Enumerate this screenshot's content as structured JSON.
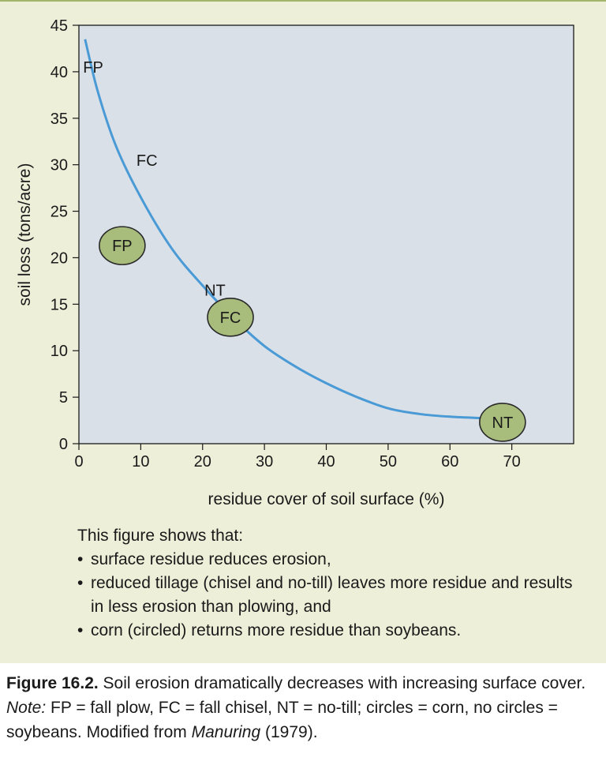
{
  "chart_data": {
    "type": "line",
    "xlabel": "residue cover of soil surface (%)",
    "ylabel": "soil loss (tons/acre)",
    "xlim": [
      0,
      80
    ],
    "ylim": [
      0,
      45
    ],
    "x_ticks": [
      0,
      10,
      20,
      30,
      40,
      50,
      60,
      70
    ],
    "y_ticks": [
      0,
      5,
      10,
      15,
      20,
      25,
      30,
      35,
      40,
      45
    ],
    "grid": false,
    "series": [
      {
        "points": [
          [
            1,
            43.5
          ],
          [
            3,
            38
          ],
          [
            6,
            32
          ],
          [
            10,
            26.5
          ],
          [
            15,
            21
          ],
          [
            20,
            17
          ],
          [
            25,
            13.5
          ],
          [
            30,
            10.5
          ],
          [
            35,
            8.3
          ],
          [
            40,
            6.5
          ],
          [
            45,
            5
          ],
          [
            50,
            3.8
          ],
          [
            55,
            3.2
          ],
          [
            60,
            2.9
          ],
          [
            65,
            2.75
          ],
          [
            68,
            2.7
          ]
        ]
      }
    ],
    "annotations": [
      {
        "label": "FP",
        "x": 2.3,
        "y": 40.5,
        "circled": false
      },
      {
        "label": "FC",
        "x": 11,
        "y": 30.5,
        "circled": false
      },
      {
        "label": "NT",
        "x": 22,
        "y": 16.5,
        "circled": false
      },
      {
        "label": "FP",
        "x": 7,
        "y": 21.3,
        "circled": true
      },
      {
        "label": "FC",
        "x": 24.5,
        "y": 13.6,
        "circled": true
      },
      {
        "label": "NT",
        "x": 68.5,
        "y": 2.3,
        "circled": true
      }
    ]
  },
  "notes": {
    "intro": "This figure shows that:",
    "bullets": [
      "surface residue reduces erosion,",
      "reduced tillage (chisel and no-till) leaves more residue and results in less erosion than plowing, and",
      "corn (circled) returns more residue than soybeans."
    ]
  },
  "caption": {
    "figure_label": "Figure 16.2.",
    "text1": " Soil erosion dramatically decreases with increasing surface cover.  ",
    "note_label": "Note:",
    "text2": " FP = fall plow, FC = fall chisel, NT = no-till; circles = corn, no circles = soybeans. Modified from ",
    "source_title": "Manuring",
    "text3": " (1979)."
  },
  "colors": {
    "panel_bg": "#edefd9",
    "plot_bg": "#d9e0e8",
    "curve": "#4a9ad6",
    "circle_fill": "#a8bd7c",
    "circle_stroke": "#2a2a2a"
  }
}
